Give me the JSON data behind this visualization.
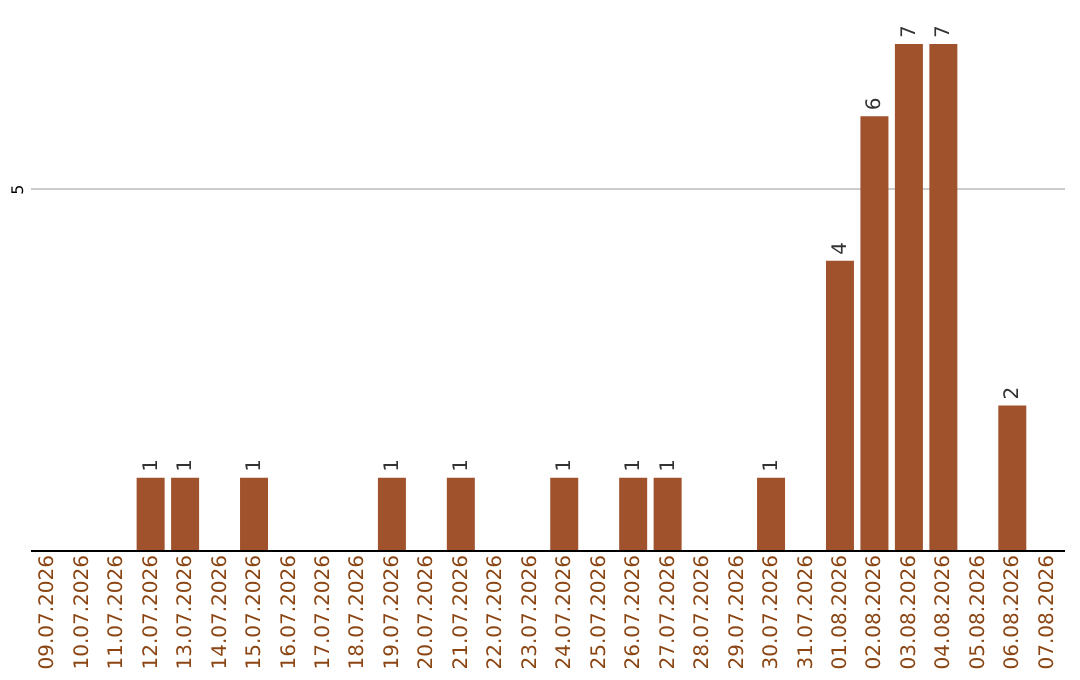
{
  "chart_data": {
    "type": "bar",
    "categories": [
      "09.07.2026",
      "10.07.2026",
      "11.07.2026",
      "12.07.2026",
      "13.07.2026",
      "14.07.2026",
      "15.07.2026",
      "16.07.2026",
      "17.07.2026",
      "18.07.2026",
      "19.07.2026",
      "20.07.2026",
      "21.07.2026",
      "22.07.2026",
      "23.07.2026",
      "24.07.2026",
      "25.07.2026",
      "26.07.2026",
      "27.07.2026",
      "28.07.2026",
      "29.07.2026",
      "30.07.2026",
      "31.07.2026",
      "01.08.2026",
      "02.08.2026",
      "03.08.2026",
      "04.08.2026",
      "05.08.2026",
      "06.08.2026",
      "07.08.2026"
    ],
    "values": [
      null,
      null,
      null,
      1,
      1,
      null,
      1,
      null,
      null,
      null,
      1,
      null,
      1,
      null,
      null,
      1,
      null,
      1,
      1,
      null,
      null,
      1,
      null,
      4,
      6,
      7,
      7,
      null,
      2,
      null
    ],
    "color": "#a0522d",
    "ylim": [
      0,
      7
    ],
    "yticks": [
      5
    ],
    "grid": "y",
    "data_labels": true
  }
}
